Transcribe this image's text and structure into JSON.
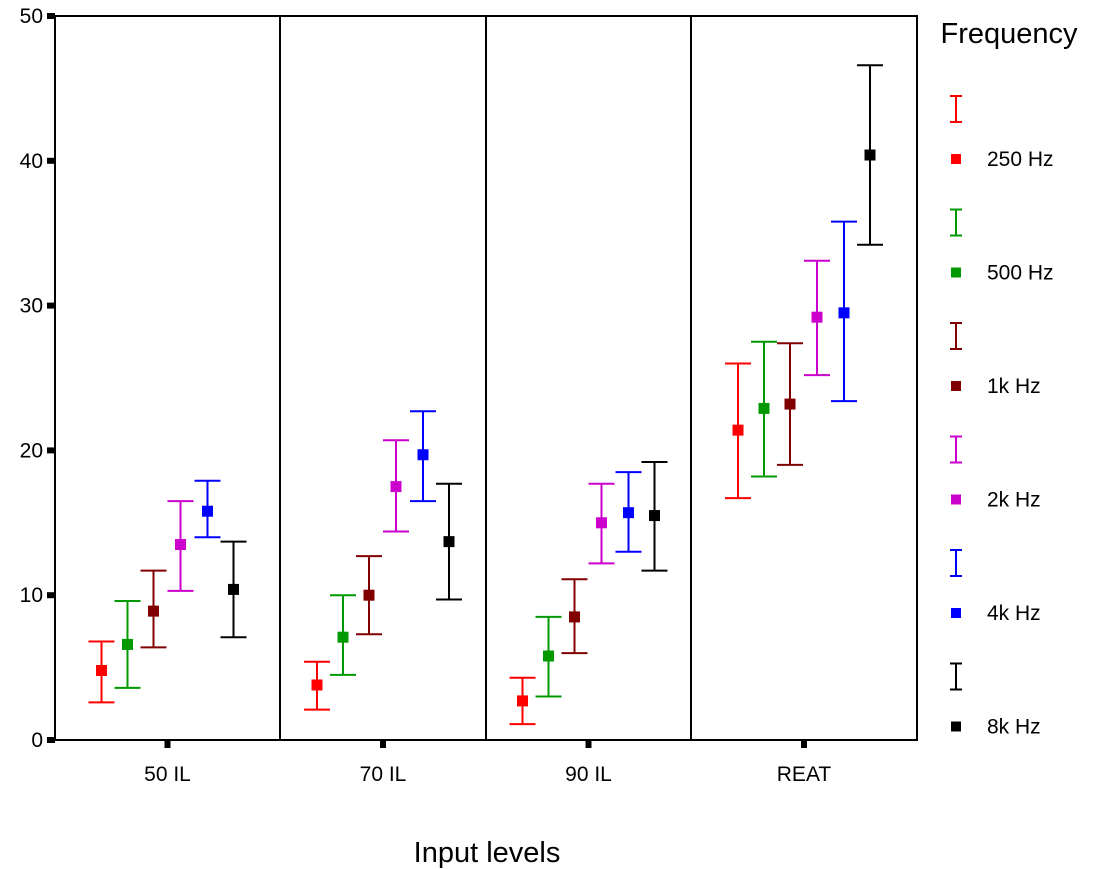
{
  "chart_data": {
    "type": "errorbar",
    "title": "",
    "xlabel": "Input levels",
    "ylabel": "",
    "ylim": [
      0,
      50
    ],
    "yticks": [
      0,
      10,
      20,
      30,
      40,
      50
    ],
    "grid": false,
    "legend": {
      "title": "Frequency",
      "placement": "right"
    },
    "categories": [
      "50 IL",
      "70 IL",
      "90 IL",
      "REAT"
    ],
    "series": [
      {
        "name": "250 Hz",
        "color": "#ff0000",
        "mean": [
          4.8,
          3.8,
          2.7,
          21.4
        ],
        "lower": [
          2.6,
          2.1,
          1.1,
          16.7
        ],
        "upper": [
          6.8,
          5.4,
          4.3,
          26.0
        ]
      },
      {
        "name": "500 Hz",
        "color": "#009900",
        "mean": [
          6.6,
          7.1,
          5.8,
          22.9
        ],
        "lower": [
          3.6,
          4.5,
          3.0,
          18.2
        ],
        "upper": [
          9.6,
          10.0,
          8.5,
          27.5
        ]
      },
      {
        "name": "1k Hz",
        "color": "#800000",
        "mean": [
          8.9,
          10.0,
          8.5,
          23.2
        ],
        "lower": [
          6.4,
          7.3,
          6.0,
          19.0
        ],
        "upper": [
          11.7,
          12.7,
          11.1,
          27.4
        ]
      },
      {
        "name": "2k Hz",
        "color": "#cc00cc",
        "mean": [
          13.5,
          17.5,
          15.0,
          29.2
        ],
        "lower": [
          10.3,
          14.4,
          12.2,
          25.2
        ],
        "upper": [
          16.5,
          20.7,
          17.7,
          33.1
        ]
      },
      {
        "name": "4k Hz",
        "color": "#0000ff",
        "mean": [
          15.8,
          19.7,
          15.7,
          29.5
        ],
        "lower": [
          14.0,
          16.5,
          13.0,
          23.4
        ],
        "upper": [
          17.9,
          22.7,
          18.5,
          35.8
        ]
      },
      {
        "name": "8k Hz",
        "color": "#000000",
        "mean": [
          10.4,
          13.7,
          15.5,
          40.4
        ],
        "lower": [
          7.1,
          9.7,
          11.7,
          34.2
        ],
        "upper": [
          13.7,
          17.7,
          19.2,
          46.6
        ]
      }
    ]
  }
}
